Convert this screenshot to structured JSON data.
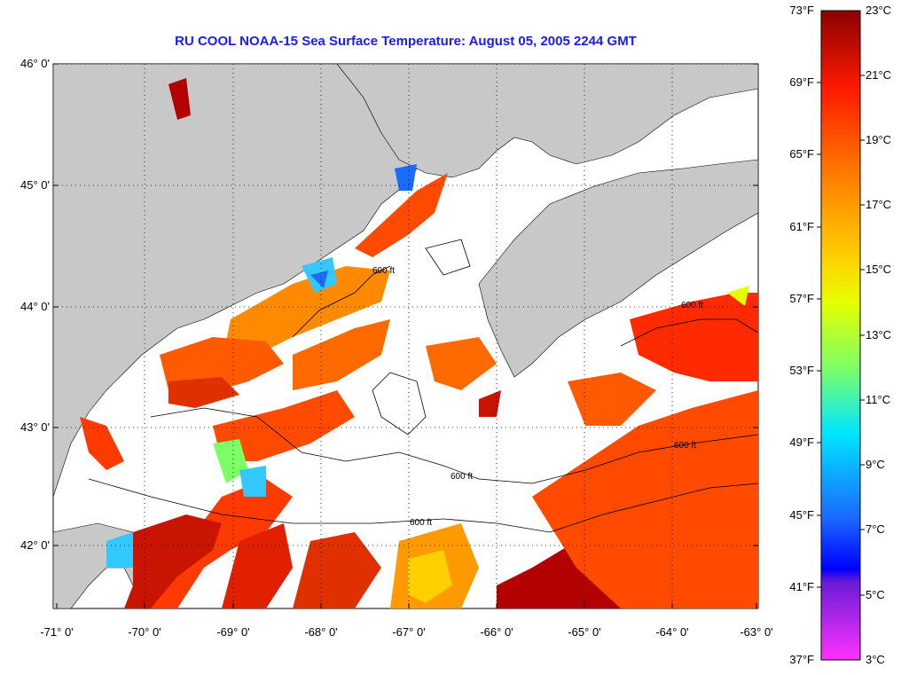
{
  "title": "RU COOL  NOAA-15  Sea Surface Temperature:  August 05, 2005 2244 GMT",
  "lat_labels": [
    "46° 0'",
    "45° 0'",
    "44° 0'",
    "43° 0'",
    "42° 0'"
  ],
  "lon_labels": [
    "-71° 0'",
    "-70° 0'",
    "-69° 0'",
    "-68° 0'",
    "-67° 0'",
    "-66° 0'",
    "-65° 0'",
    "-64° 0'",
    "-63° 0'"
  ],
  "colorbar": {
    "f_labels": [
      "73°F",
      "69°F",
      "65°F",
      "61°F",
      "57°F",
      "53°F",
      "49°F",
      "45°F",
      "41°F",
      "37°F"
    ],
    "c_labels": [
      "23°C",
      "21°C",
      "19°C",
      "17°C",
      "15°C",
      "13°C",
      "11°C",
      "9°C",
      "7°C",
      "5°C",
      "3°C"
    ]
  },
  "contour_label": "600 ft",
  "colors": {
    "land": "#c8c8c8",
    "ocean_cloud": "#ffffff",
    "title": "#1a1aff",
    "warm": "#ff4a00",
    "hot": "#b30000",
    "mid": "#ff9a00",
    "cool": "#33c8ff"
  }
}
